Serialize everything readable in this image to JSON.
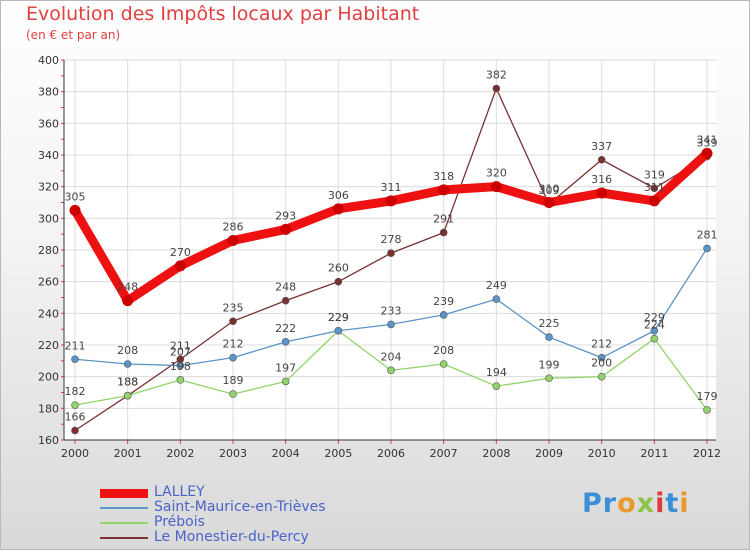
{
  "chart_data": {
    "type": "line",
    "title": "Evolution des Impôts locaux par Habitant",
    "subtitle": "(en € et par an)",
    "categories": [
      "2000",
      "2001",
      "2002",
      "2003",
      "2004",
      "2005",
      "2006",
      "2007",
      "2008",
      "2009",
      "2010",
      "2011",
      "2012"
    ],
    "y_ticks": [
      160,
      180,
      200,
      220,
      240,
      260,
      280,
      300,
      320,
      340,
      360,
      380,
      400
    ],
    "ylim": [
      160,
      400
    ],
    "grid": true,
    "legend_position": "bottom-left",
    "series": [
      {
        "name": "LALLEY",
        "color": "#ee1111",
        "values": [
          305,
          248,
          270,
          286,
          293,
          306,
          311,
          318,
          320,
          310,
          316,
          311,
          341
        ],
        "labels": [
          "305",
          "248",
          "270",
          "286",
          "293",
          "306",
          "311",
          "318",
          "320",
          "310",
          "316",
          "311",
          "341"
        ]
      },
      {
        "name": "Saint-Maurice-en-Trièves",
        "color": "#5b95c8",
        "values": [
          211,
          208,
          207,
          212,
          222,
          229,
          233,
          239,
          249,
          225,
          212,
          229,
          281
        ],
        "labels": [
          "211",
          "208",
          "207",
          "212",
          "222",
          "229",
          "233",
          "239",
          "249",
          "225",
          "212",
          "229",
          "281"
        ]
      },
      {
        "name": "Prébois",
        "color": "#92d46a",
        "values": [
          182,
          188,
          198,
          189,
          197,
          229,
          204,
          208,
          194,
          199,
          200,
          224,
          179
        ],
        "labels": [
          "182",
          "188",
          "198",
          "189",
          "197",
          "229",
          "204",
          "208",
          "194",
          "199",
          "200",
          "224",
          "179"
        ]
      },
      {
        "name": "Le Monestier-du-Percy",
        "color": "#7a3030",
        "values": [
          166,
          188,
          211,
          235,
          248,
          260,
          278,
          291,
          382,
          309,
          337,
          319,
          339
        ],
        "labels": [
          "166",
          "188",
          "211",
          "235",
          "248",
          "260",
          "278",
          "291",
          "382",
          "309",
          "337",
          "319",
          "339"
        ]
      }
    ]
  },
  "logo": {
    "text": "Proxiti",
    "letter_colors": [
      "#3b8fd6",
      "#3b8fd6",
      "#e8992a",
      "#8fc24a",
      "#e23a3a",
      "#3b8fd6",
      "#e8992a"
    ]
  }
}
